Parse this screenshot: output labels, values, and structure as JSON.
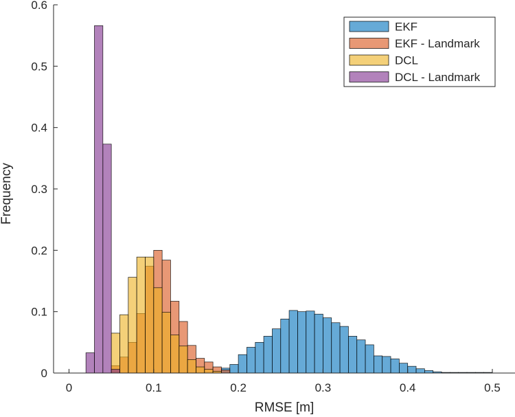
{
  "chart_data": {
    "type": "bar",
    "subtype": "overlapping-histogram",
    "title": "",
    "xlabel": "RMSE [m]",
    "ylabel": "Frequency",
    "xlim": [
      -0.02,
      0.51
    ],
    "ylim": [
      0,
      0.6
    ],
    "xticks": [
      0,
      0.1,
      0.2,
      0.3,
      0.4,
      0.5
    ],
    "xtick_labels": [
      "0",
      "0.1",
      "0.2",
      "0.3",
      "0.4",
      "0.5"
    ],
    "yticks": [
      0,
      0.1,
      0.2,
      0.3,
      0.4,
      0.5,
      0.6
    ],
    "ytick_labels": [
      "0",
      "0.1",
      "0.2",
      "0.3",
      "0.4",
      "0.5",
      "0.6"
    ],
    "grid": false,
    "legend_position": "top-right",
    "series": [
      {
        "name": "EKF",
        "color": "#0072BD",
        "bin_edges": [
          0.18,
          0.19,
          0.2,
          0.21,
          0.22,
          0.23,
          0.24,
          0.25,
          0.26,
          0.27,
          0.28,
          0.29,
          0.3,
          0.31,
          0.32,
          0.33,
          0.34,
          0.35,
          0.36,
          0.37,
          0.38,
          0.39,
          0.4,
          0.41,
          0.42,
          0.43,
          0.44,
          0.45,
          0.46,
          0.47,
          0.48,
          0.49,
          0.5
        ],
        "values": [
          0.008,
          0.014,
          0.03,
          0.042,
          0.05,
          0.06,
          0.072,
          0.088,
          0.102,
          0.1,
          0.101,
          0.096,
          0.09,
          0.082,
          0.076,
          0.06,
          0.054,
          0.046,
          0.028,
          0.027,
          0.023,
          0.016,
          0.011,
          0.007,
          0.004,
          0.002,
          0.001,
          0.001,
          0.001,
          0.001,
          0.001,
          0.001
        ]
      },
      {
        "name": "EKF - Landmark",
        "color": "#D95319",
        "bin_edges": [
          0.05,
          0.06,
          0.07,
          0.08,
          0.09,
          0.1,
          0.11,
          0.12,
          0.13,
          0.14,
          0.15,
          0.16,
          0.17,
          0.18,
          0.19
        ],
        "values": [
          0.012,
          0.026,
          0.05,
          0.097,
          0.174,
          0.2,
          0.184,
          0.117,
          0.084,
          0.045,
          0.024,
          0.018,
          0.01,
          0.005
        ]
      },
      {
        "name": "DCL",
        "color": "#EDB120",
        "bin_edges": [
          0.05,
          0.06,
          0.07,
          0.08,
          0.09,
          0.1,
          0.11,
          0.12,
          0.13,
          0.14,
          0.15,
          0.16,
          0.17,
          0.18
        ],
        "values": [
          0.065,
          0.095,
          0.156,
          0.189,
          0.189,
          0.139,
          0.099,
          0.062,
          0.044,
          0.022,
          0.01,
          0.006,
          0.003
        ]
      },
      {
        "name": "DCL - Landmark",
        "color": "#7E2F8E",
        "bin_edges": [
          0.02,
          0.03,
          0.04,
          0.05,
          0.06
        ],
        "values": [
          0.033,
          0.566,
          0.373,
          0.006
        ]
      }
    ]
  }
}
